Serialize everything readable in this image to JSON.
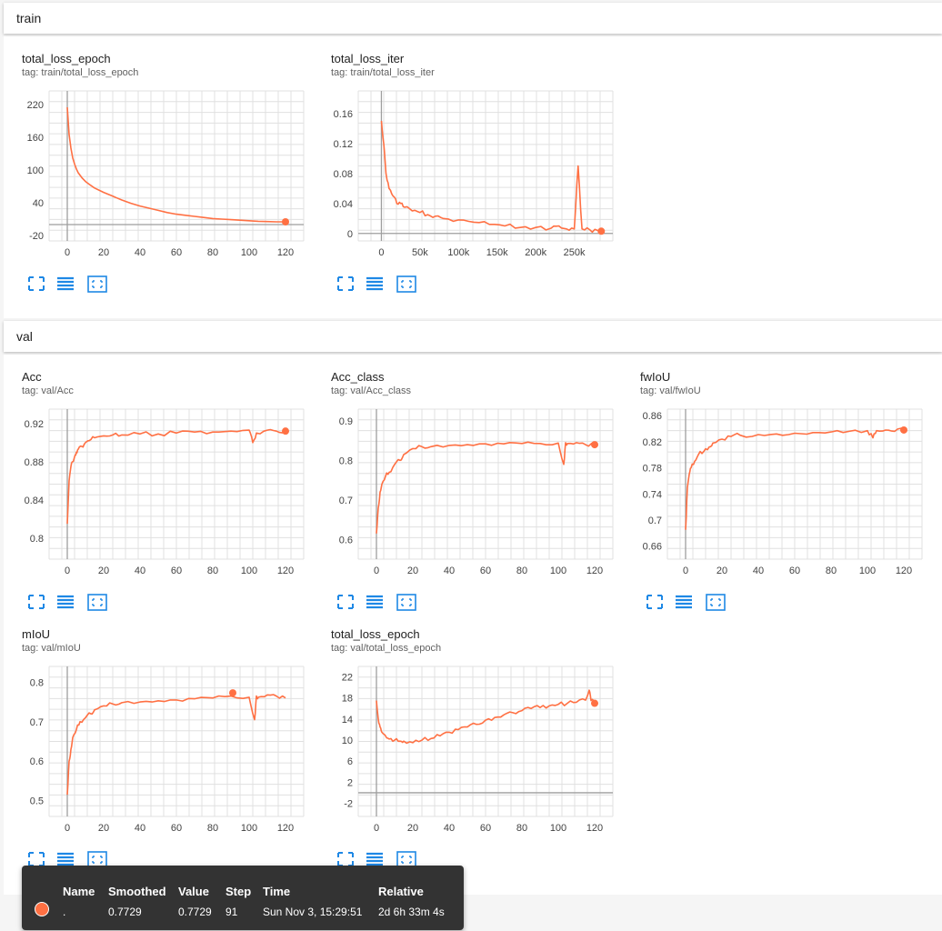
{
  "colors": {
    "line": "#ff7043",
    "grid": "#e0e0e0",
    "axis": "#9e9e9e",
    "icon": "#1e88e5"
  },
  "sections": {
    "train": {
      "label": "train"
    },
    "val": {
      "label": "val"
    }
  },
  "cards": {
    "train_total_loss_epoch": {
      "title": "total_loss_epoch",
      "tag": "tag: train/total_loss_epoch"
    },
    "train_total_loss_iter": {
      "title": "total_loss_iter",
      "tag": "tag: train/total_loss_iter"
    },
    "val_acc": {
      "title": "Acc",
      "tag": "tag: val/Acc"
    },
    "val_acc_class": {
      "title": "Acc_class",
      "tag": "tag: val/Acc_class"
    },
    "val_fwiou": {
      "title": "fwIoU",
      "tag": "tag: val/fwIoU"
    },
    "val_miou": {
      "title": "mIoU",
      "tag": "tag: val/mIoU"
    },
    "val_total_loss_epoch": {
      "title": "total_loss_epoch",
      "tag": "tag: val/total_loss_epoch"
    }
  },
  "icons": {
    "expand": "fullscreen-icon",
    "data": "list-lines-icon",
    "fit": "fit-domain-icon"
  },
  "tooltip": {
    "headers": {
      "name": "Name",
      "smoothed": "Smoothed",
      "value": "Value",
      "step": "Step",
      "time": "Time",
      "relative": "Relative"
    },
    "row": {
      "name": ".",
      "smoothed": "0.7729",
      "value": "0.7729",
      "step": "91",
      "time": "Sun Nov 3, 15:29:51",
      "relative": "2d 6h 33m 4s"
    }
  },
  "chart_data": [
    {
      "id": "train_total_loss_epoch",
      "type": "line",
      "xlim": [
        -10,
        130
      ],
      "ylim": [
        -30,
        245
      ],
      "xticks": [
        0,
        20,
        40,
        60,
        80,
        100,
        120
      ],
      "xtick_labels": [
        "0",
        "20",
        "40",
        "60",
        "80",
        "100",
        "120"
      ],
      "yticks": [
        220,
        160,
        100,
        40,
        -20
      ],
      "ytick_labels": [
        "220",
        "160",
        "100",
        "40",
        "-20"
      ],
      "x": [
        0,
        1,
        2,
        3,
        4,
        5,
        6,
        8,
        10,
        12,
        15,
        20,
        25,
        30,
        35,
        40,
        45,
        50,
        55,
        60,
        65,
        70,
        75,
        80,
        85,
        90,
        95,
        100,
        105,
        110,
        115,
        120
      ],
      "y": [
        215,
        165,
        140,
        122,
        111,
        102,
        95,
        86,
        79,
        74,
        67,
        59,
        52,
        45,
        39,
        34,
        30,
        26,
        22,
        19,
        17,
        15,
        13,
        11,
        10,
        9,
        8,
        7,
        6,
        5.5,
        5,
        5
      ],
      "end_marker": true
    },
    {
      "id": "train_total_loss_iter",
      "type": "line",
      "noisy": true,
      "xlim": [
        -30000,
        300000
      ],
      "ylim": [
        -0.01,
        0.19
      ],
      "xticks": [
        0,
        50000,
        100000,
        150000,
        200000,
        250000
      ],
      "xtick_labels": [
        "0",
        "50k",
        "100k",
        "150k",
        "200k",
        "250k"
      ],
      "yticks": [
        0.16,
        0.12,
        0.08,
        0.04,
        0
      ],
      "ytick_labels": [
        "0.16",
        "0.12",
        "0.08",
        "0.04",
        "0"
      ],
      "x": [
        0,
        3000,
        6000,
        10000,
        15000,
        20000,
        25000,
        30000,
        40000,
        50000,
        60000,
        70000,
        80000,
        100000,
        120000,
        140000,
        160000,
        180000,
        200000,
        220000,
        230000,
        240000,
        250000,
        255000,
        260000,
        270000,
        280000,
        285000
      ],
      "y": [
        0.15,
        0.12,
        0.08,
        0.06,
        0.05,
        0.04,
        0.04,
        0.035,
        0.03,
        0.028,
        0.025,
        0.023,
        0.02,
        0.018,
        0.015,
        0.012,
        0.01,
        0.008,
        0.008,
        0.007,
        0.01,
        0.006,
        0.006,
        0.09,
        0.006,
        0.005,
        0.004,
        0.003
      ],
      "end_marker": true
    },
    {
      "id": "val_acc",
      "type": "line",
      "noisy": true,
      "xlim": [
        -10,
        130
      ],
      "ylim": [
        0.778,
        0.935
      ],
      "xticks": [
        0,
        20,
        40,
        60,
        80,
        100,
        120
      ],
      "xtick_labels": [
        "0",
        "20",
        "40",
        "60",
        "80",
        "100",
        "120"
      ],
      "yticks": [
        0.92,
        0.88,
        0.84,
        0.8
      ],
      "ytick_labels": [
        "0.92",
        "0.88",
        "0.84",
        "0.8"
      ],
      "x": [
        0,
        1,
        2,
        3,
        4,
        5,
        6,
        8,
        10,
        12,
        15,
        20,
        25,
        30,
        40,
        50,
        60,
        70,
        80,
        90,
        100,
        102,
        104,
        110,
        115,
        120
      ],
      "y": [
        0.815,
        0.86,
        0.875,
        0.88,
        0.885,
        0.89,
        0.893,
        0.896,
        0.9,
        0.902,
        0.905,
        0.907,
        0.908,
        0.908,
        0.909,
        0.909,
        0.91,
        0.911,
        0.911,
        0.912,
        0.913,
        0.9,
        0.91,
        0.913,
        0.912,
        0.912
      ],
      "end_marker": true
    },
    {
      "id": "val_acc_class",
      "type": "line",
      "noisy": true,
      "xlim": [
        -10,
        130
      ],
      "ylim": [
        0.55,
        0.93
      ],
      "xticks": [
        0,
        20,
        40,
        60,
        80,
        100,
        120
      ],
      "xtick_labels": [
        "0",
        "20",
        "40",
        "60",
        "80",
        "100",
        "120"
      ],
      "yticks": [
        0.9,
        0.8,
        0.7,
        0.6
      ],
      "ytick_labels": [
        "0.9",
        "0.8",
        "0.7",
        "0.6"
      ],
      "x": [
        0,
        1,
        2,
        3,
        5,
        7,
        10,
        13,
        15,
        20,
        25,
        30,
        40,
        50,
        60,
        70,
        80,
        90,
        100,
        103,
        104,
        105,
        110,
        115,
        120
      ],
      "y": [
        0.615,
        0.68,
        0.72,
        0.74,
        0.76,
        0.77,
        0.79,
        0.8,
        0.815,
        0.83,
        0.835,
        0.835,
        0.838,
        0.84,
        0.842,
        0.842,
        0.843,
        0.843,
        0.844,
        0.79,
        0.845,
        0.843,
        0.845,
        0.84,
        0.84
      ],
      "end_marker": true
    },
    {
      "id": "val_fwiou",
      "type": "line",
      "noisy": true,
      "xlim": [
        -10,
        130
      ],
      "ylim": [
        0.64,
        0.87
      ],
      "xticks": [
        0,
        20,
        40,
        60,
        80,
        100,
        120
      ],
      "xtick_labels": [
        "0",
        "20",
        "40",
        "60",
        "80",
        "100",
        "120"
      ],
      "yticks": [
        0.86,
        0.82,
        0.78,
        0.74,
        0.7,
        0.66
      ],
      "ytick_labels": [
        "0.86",
        "0.82",
        "0.78",
        "0.74",
        "0.7",
        "0.66"
      ],
      "x": [
        0,
        1,
        2,
        3,
        5,
        7,
        10,
        13,
        15,
        20,
        25,
        30,
        40,
        50,
        60,
        70,
        80,
        90,
        100,
        103,
        105,
        110,
        115,
        120
      ],
      "y": [
        0.685,
        0.75,
        0.77,
        0.78,
        0.79,
        0.8,
        0.805,
        0.812,
        0.818,
        0.824,
        0.828,
        0.83,
        0.831,
        0.832,
        0.833,
        0.834,
        0.835,
        0.836,
        0.837,
        0.826,
        0.837,
        0.838,
        0.836,
        0.838
      ],
      "end_marker": true
    },
    {
      "id": "val_miou",
      "type": "line",
      "noisy": true,
      "xlim": [
        -10,
        130
      ],
      "ylim": [
        0.46,
        0.84
      ],
      "xticks": [
        0,
        20,
        40,
        60,
        80,
        100,
        120
      ],
      "xtick_labels": [
        "0",
        "20",
        "40",
        "60",
        "80",
        "100",
        "120"
      ],
      "yticks": [
        0.8,
        0.7,
        0.6,
        0.5
      ],
      "ytick_labels": [
        "0.8",
        "0.7",
        "0.6",
        "0.5"
      ],
      "x": [
        0,
        1,
        2,
        3,
        5,
        7,
        10,
        13,
        15,
        20,
        25,
        30,
        40,
        50,
        60,
        70,
        80,
        90,
        100,
        103,
        104,
        105,
        110,
        115,
        120
      ],
      "y": [
        0.515,
        0.6,
        0.63,
        0.66,
        0.68,
        0.7,
        0.71,
        0.72,
        0.73,
        0.74,
        0.745,
        0.748,
        0.75,
        0.753,
        0.755,
        0.758,
        0.76,
        0.765,
        0.762,
        0.705,
        0.765,
        0.762,
        0.768,
        0.765,
        0.76
      ],
      "marker_x": 91,
      "marker_y": 0.7729,
      "end_marker": false
    },
    {
      "id": "val_total_loss_epoch",
      "type": "line",
      "noisy": true,
      "xlim": [
        -10,
        130
      ],
      "ylim": [
        -4.5,
        24
      ],
      "xticks": [
        0,
        20,
        40,
        60,
        80,
        100,
        120
      ],
      "xtick_labels": [
        "0",
        "20",
        "40",
        "60",
        "80",
        "100",
        "120"
      ],
      "yticks": [
        22,
        18,
        14,
        10,
        6,
        2,
        -2
      ],
      "ytick_labels": [
        "22",
        "18",
        "14",
        "10",
        "6",
        "2",
        "-2"
      ],
      "x": [
        0,
        1,
        2,
        3,
        5,
        7,
        10,
        13,
        15,
        20,
        25,
        30,
        35,
        40,
        45,
        50,
        55,
        60,
        65,
        70,
        75,
        80,
        85,
        90,
        95,
        100,
        105,
        110,
        115,
        117,
        118,
        120
      ],
      "y": [
        17.5,
        14,
        12.5,
        11.5,
        10.8,
        10.2,
        10,
        9.8,
        9.8,
        9.5,
        10,
        10.3,
        10.8,
        11.5,
        12,
        12.5,
        13,
        13.8,
        14.3,
        14.8,
        15.2,
        15.6,
        16,
        16.2,
        16.5,
        16.8,
        17,
        17.2,
        17.6,
        19.5,
        17.5,
        17
      ],
      "end_marker": true
    }
  ]
}
